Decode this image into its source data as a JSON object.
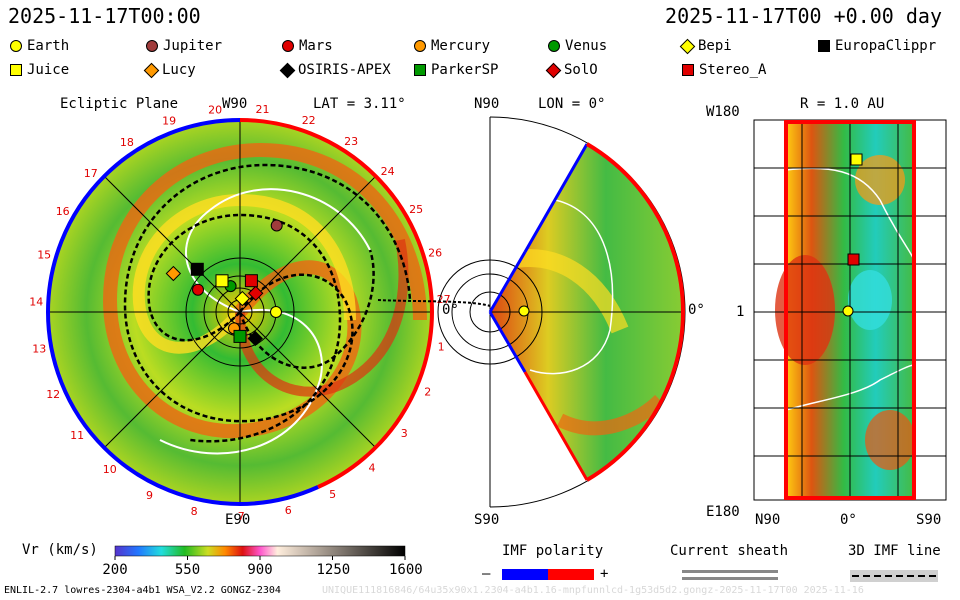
{
  "header": {
    "date_left": "2025-11-17T00:00",
    "date_right": "2025-11-17T00 +0.00 day"
  },
  "legend": [
    {
      "label": "Earth",
      "shape": "circle",
      "color": "#ffff00"
    },
    {
      "label": "Jupiter",
      "shape": "circle",
      "color": "#a03c3c"
    },
    {
      "label": "Mars",
      "shape": "circle",
      "color": "#e00000"
    },
    {
      "label": "Mercury",
      "shape": "circle",
      "color": "#ff9900"
    },
    {
      "label": "Venus",
      "shape": "circle",
      "color": "#009900"
    },
    {
      "label": "Bepi",
      "shape": "diamond",
      "color": "#ffff00"
    },
    {
      "label": "EuropaClippr",
      "shape": "square",
      "color": "#000000"
    },
    {
      "label": "Juice",
      "shape": "square",
      "color": "#ffff00"
    },
    {
      "label": "Lucy",
      "shape": "diamond",
      "color": "#ff9900"
    },
    {
      "label": "OSIRIS-APEX",
      "shape": "diamond",
      "color": "#000000"
    },
    {
      "label": "ParkerSP",
      "shape": "square",
      "color": "#009900"
    },
    {
      "label": "SolO",
      "shape": "diamond",
      "color": "#e00000"
    },
    {
      "label": "Stereo_A",
      "shape": "square",
      "color": "#e00000"
    }
  ],
  "panels": {
    "ecliptic": {
      "title": "Ecliptic Plane",
      "top_label": "W90",
      "lat_label": "LAT = 3.11°",
      "bottom_label": "E90",
      "right_label": "0°",
      "carrington_ticks": [
        "20",
        "21",
        "22",
        "23",
        "24",
        "25",
        "26",
        "27",
        "1",
        "2",
        "3",
        "4",
        "5",
        "6",
        "7",
        "8",
        "9",
        "10",
        "11",
        "12",
        "13",
        "14",
        "15",
        "16",
        "17",
        "18",
        "19"
      ]
    },
    "meridional": {
      "top_label": "N90",
      "lon_label": "LON = 0°",
      "bottom_label": "S90",
      "right_label": "0°"
    },
    "radial": {
      "r_label": "R = 1.0 AU",
      "top_label": "W180",
      "mid_label": "1",
      "bottom_label": "E180",
      "x_labels": [
        "N90",
        "0°",
        "S90"
      ]
    }
  },
  "colorbar": {
    "label": "Vr (km/s)",
    "ticks": [
      "200",
      "550",
      "900",
      "1250",
      "1600"
    ]
  },
  "imf": {
    "label": "IMF polarity",
    "minus": "–",
    "plus": "+",
    "neg_color": "#0000ff",
    "pos_color": "#ff0000"
  },
  "sheath": {
    "label": "Current sheath"
  },
  "imfline": {
    "label": "3D IMF line"
  },
  "footer": {
    "left": "ENLIL-2.7 lowres-2304-a4b1 WSA_V2.2 GONGZ-2304",
    "right": "UNIQUE111816846/64u35x90x1.2304-a4b1.16-mnpfunnlcd-1g53d5d2.gongz-2025-11-17T00  2025-11-16"
  },
  "chart_data": [
    {
      "type": "heatmap",
      "view": "ecliptic plane",
      "title": "Ecliptic Plane",
      "subtitle": "LAT = 3.11°",
      "bodies": [
        {
          "name": "Earth",
          "r_au": 1.0,
          "lon_deg": 0
        },
        {
          "name": "Jupiter",
          "r_au": 5.1,
          "lon_deg": 67
        },
        {
          "name": "Mars",
          "r_au": 1.5,
          "lon_deg": 152
        },
        {
          "name": "Mercury",
          "r_au": 0.4,
          "lon_deg": 250
        },
        {
          "name": "Venus",
          "r_au": 0.7,
          "lon_deg": 110
        },
        {
          "name": "Bepi",
          "r_au": 0.3,
          "lon_deg": 80
        },
        {
          "name": "EuropaClippr",
          "r_au": 2.2,
          "lon_deg": 135
        },
        {
          "name": "Juice",
          "r_au": 1.0,
          "lon_deg": 120
        },
        {
          "name": "Lucy",
          "r_au": 3.4,
          "lon_deg": 150
        },
        {
          "name": "OSIRIS-APEX",
          "r_au": 0.8,
          "lon_deg": 300
        },
        {
          "name": "ParkerSP",
          "r_au": 0.6,
          "lon_deg": 270
        },
        {
          "name": "SolO",
          "r_au": 0.6,
          "lon_deg": 50
        },
        {
          "name": "Stereo_A",
          "r_au": 0.9,
          "lon_deg": 70
        }
      ]
    },
    {
      "type": "heatmap",
      "view": "meridional plane",
      "subtitle": "LON = 0°",
      "theta_range_deg": [
        -60,
        60
      ]
    },
    {
      "type": "heatmap",
      "view": "radial map",
      "subtitle": "R = 1.0 AU",
      "xlim_labels": [
        "N90",
        "S90"
      ],
      "ylim_labels": [
        "E180",
        "W180"
      ]
    },
    {
      "type": "colorbar",
      "label": "Vr (km/s)",
      "range": [
        200,
        1600
      ],
      "ticks": [
        200,
        550,
        900,
        1250,
        1600
      ]
    }
  ]
}
